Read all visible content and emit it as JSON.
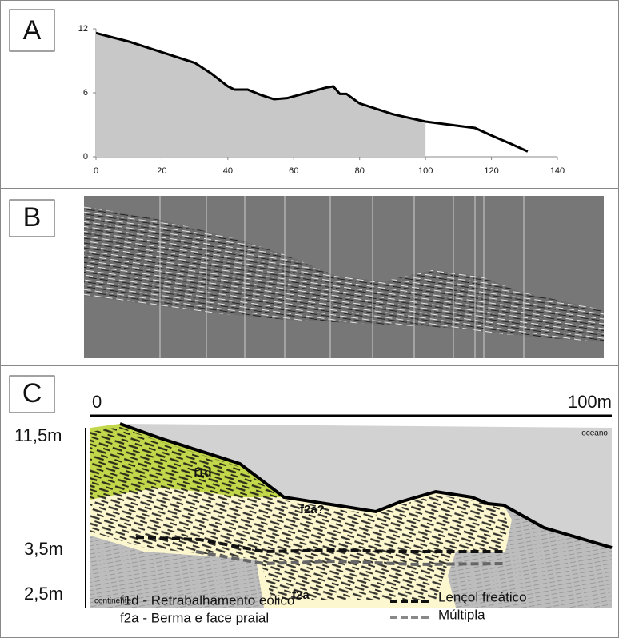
{
  "chart_data": {
    "type": "area",
    "label": "A",
    "x": [
      0,
      10,
      20,
      30,
      35,
      40,
      42,
      46,
      50,
      54,
      58,
      64,
      70,
      72,
      74,
      76,
      80,
      90,
      100,
      110,
      115,
      120,
      126,
      131
    ],
    "values": [
      11.6,
      10.8,
      9.8,
      8.8,
      7.8,
      6.6,
      6.3,
      6.3,
      5.8,
      5.4,
      5.5,
      6.0,
      6.5,
      6.6,
      5.9,
      5.9,
      5.0,
      4.0,
      3.3,
      2.9,
      2.7,
      2.0,
      1.2,
      0.5
    ],
    "shaded_to": 100,
    "fill_color": "#c8c8c8",
    "color": "#000000",
    "xlim": [
      0,
      140
    ],
    "xticks": [
      0,
      20,
      40,
      60,
      80,
      100,
      120,
      140
    ],
    "ylim": [
      0,
      12
    ],
    "yticks": [
      0,
      6,
      12
    ]
  },
  "panel_b": {
    "label": "B"
  },
  "panel_c": {
    "label": "C",
    "scale_start": "0",
    "scale_end": "100m",
    "depth_labels": [
      "11,5m",
      "3,5m",
      "2,5m"
    ],
    "ocean": "oceano",
    "continent": "continente",
    "units": [
      "f1d",
      "f2a?",
      "f2a"
    ],
    "legend": [
      "f1d - Retrabalhamento eólico",
      "f2a - Berma e face praial",
      "Lençol freático",
      "Múltipla"
    ]
  }
}
